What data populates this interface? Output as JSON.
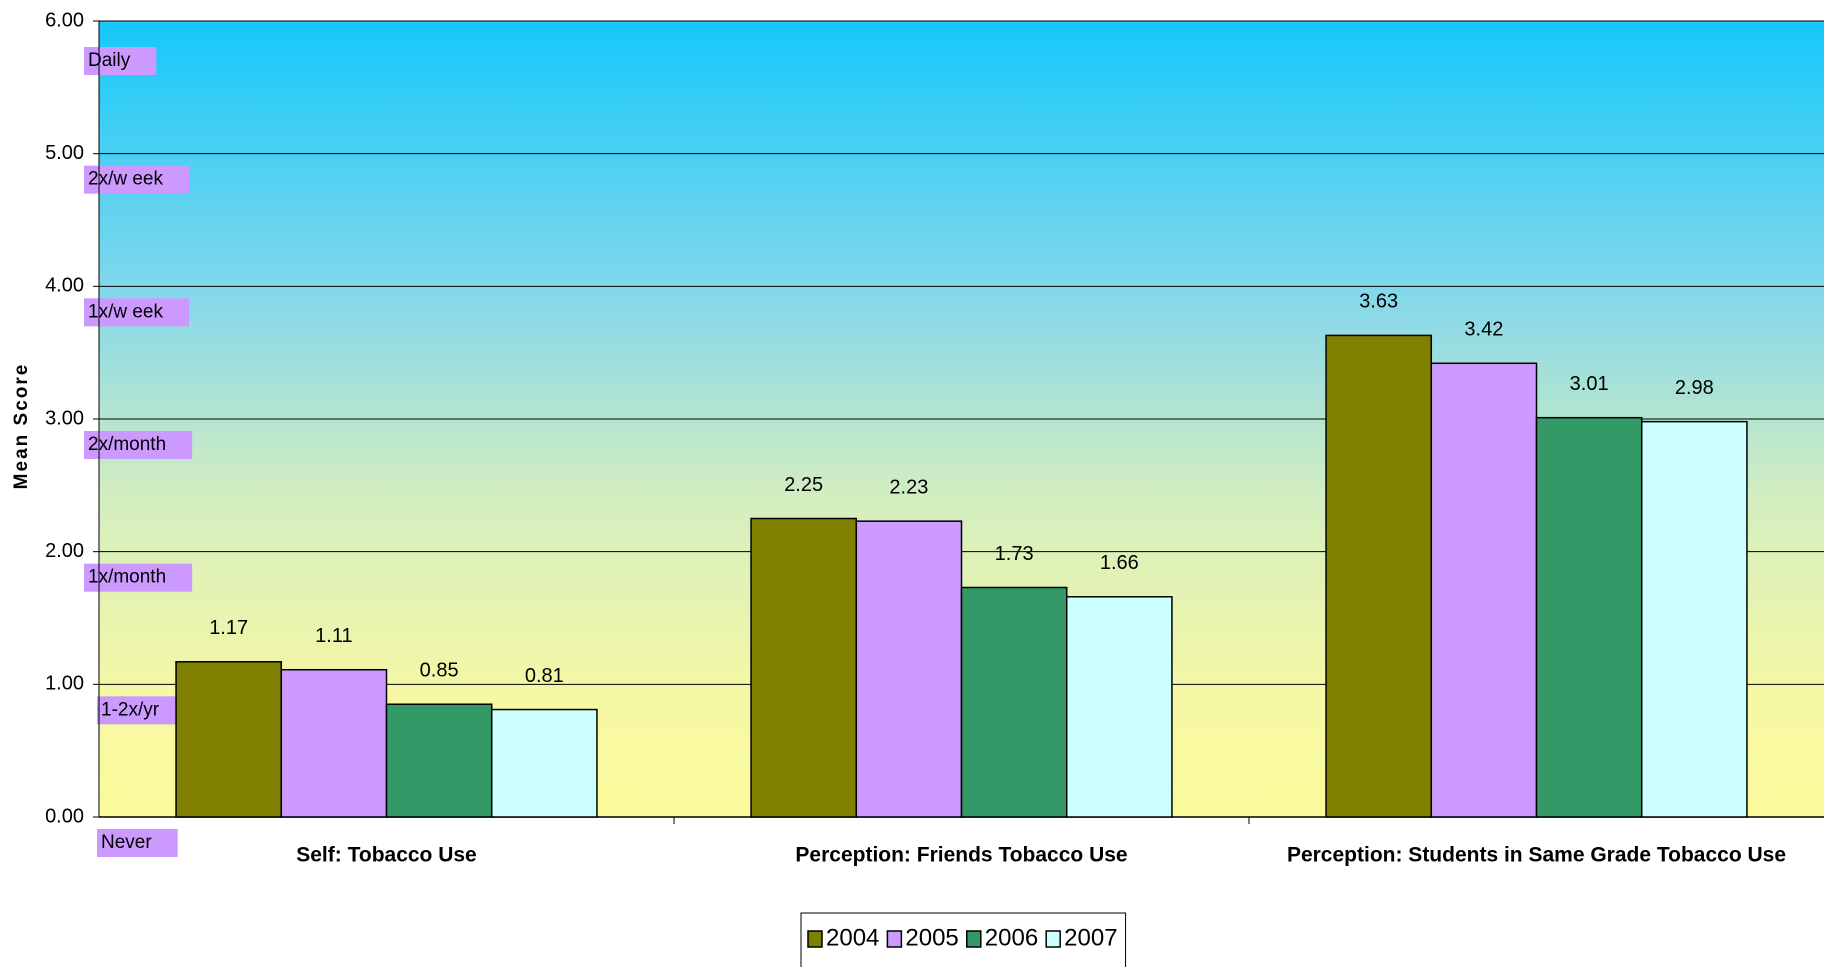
{
  "chart_data": {
    "type": "bar",
    "y_label": "Mean Score",
    "categories": [
      "Self: Tobacco Use",
      "Perception: Friends Tobacco Use",
      "Perception: Students in Same Grade Tobacco Use"
    ],
    "series": [
      {
        "name": "2004",
        "color": "#808000",
        "values": [
          1.17,
          2.25,
          3.63
        ]
      },
      {
        "name": "2005",
        "color": "#cc99ff",
        "values": [
          1.11,
          2.23,
          3.42
        ]
      },
      {
        "name": "2006",
        "color": "#339966",
        "values": [
          0.85,
          1.73,
          3.01
        ]
      },
      {
        "name": "2007",
        "color": "#ccffff",
        "values": [
          0.81,
          1.66,
          2.98
        ]
      }
    ],
    "ylim": [
      0,
      6
    ],
    "yticks": [
      {
        "value": 0,
        "label": "0.00"
      },
      {
        "value": 1,
        "label": "1.00"
      },
      {
        "value": 2,
        "label": "2.00"
      },
      {
        "value": 3,
        "label": "3.00"
      },
      {
        "value": 4,
        "label": "4.00"
      },
      {
        "value": 5,
        "label": "5.00"
      },
      {
        "value": 6,
        "label": "6.00"
      }
    ],
    "level_labels": [
      "Never",
      "1-2x/yr",
      "1x/month",
      "2x/month",
      "1x/w eek",
      "2x/w eek",
      "Daily"
    ],
    "grid": true,
    "legend": "bottom"
  }
}
